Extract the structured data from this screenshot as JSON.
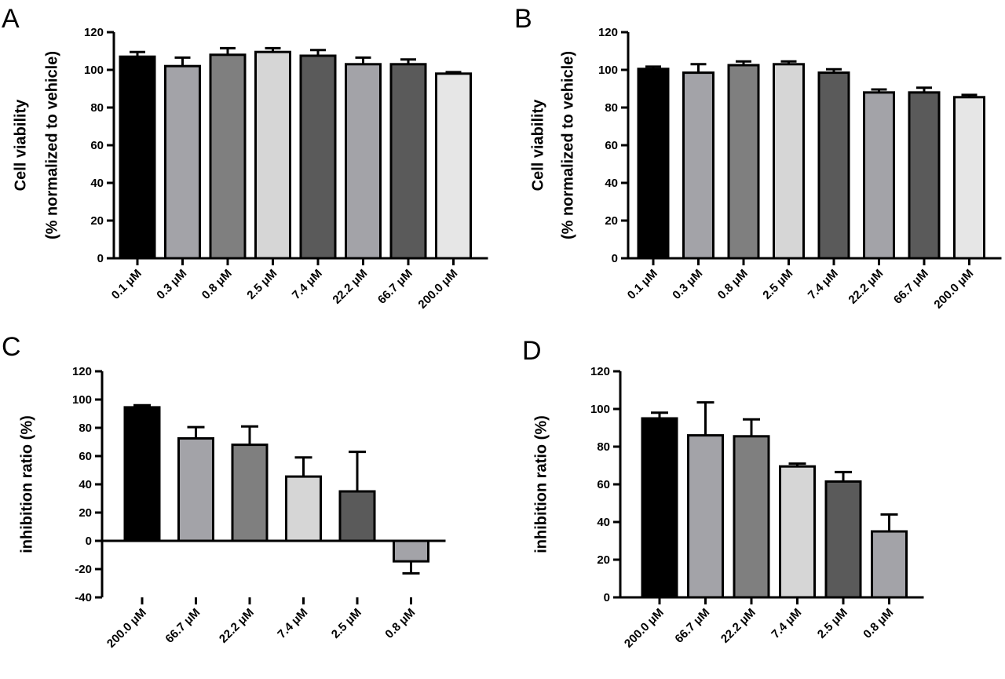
{
  "figure": {
    "panel_letters": [
      "A",
      "B",
      "C",
      "D"
    ]
  },
  "chart_data": [
    {
      "panel": "A",
      "type": "bar",
      "categories": [
        "0.1 μM",
        "0.3 μM",
        "0.8 μM",
        "2.5 μM",
        "7.4 μM",
        "22.2 μM",
        "66.7 μM",
        "200.0 μM"
      ],
      "values": [
        107,
        102,
        108,
        109.5,
        107.5,
        103,
        103,
        98
      ],
      "errors": [
        2.5,
        4.5,
        3.5,
        2,
        3,
        3.5,
        2.5,
        0.8
      ],
      "bar_colors": [
        "#000000",
        "#a3a3a8",
        "#7f7f7f",
        "#d6d6d6",
        "#5a5a5a",
        "#a3a3a8",
        "#5a5a5a",
        "#e6e6e6"
      ],
      "ylabel_lines": [
        "Cell viability",
        "(% normalized to vehicle)"
      ],
      "ylim": [
        0,
        120
      ],
      "yticks": [
        0,
        20,
        40,
        60,
        80,
        100,
        120
      ],
      "grid": false
    },
    {
      "panel": "B",
      "type": "bar",
      "categories": [
        "0.1 μM",
        "0.3 μM",
        "0.8 μM",
        "2.5 μM",
        "7.4 μM",
        "22.2 μM",
        "66.7 μM",
        "200.0 μM"
      ],
      "values": [
        100.5,
        98.5,
        102.5,
        103,
        98.5,
        88,
        88,
        85.5
      ],
      "errors": [
        1.2,
        4.5,
        2,
        1.5,
        1.8,
        1.6,
        2.5,
        1.2
      ],
      "bar_colors": [
        "#000000",
        "#a3a3a8",
        "#7f7f7f",
        "#d6d6d6",
        "#5a5a5a",
        "#a3a3a8",
        "#5a5a5a",
        "#e6e6e6"
      ],
      "ylabel_lines": [
        "Cell viability",
        "(% normalized to vehicle)"
      ],
      "ylim": [
        0,
        120
      ],
      "yticks": [
        0,
        20,
        40,
        60,
        80,
        100,
        120
      ],
      "grid": false
    },
    {
      "panel": "C",
      "type": "bar",
      "categories": [
        "200.0 μM",
        "66.7 μM",
        "22.2 μM",
        "7.4 μM",
        "2.5 μM",
        "0.8 μM"
      ],
      "values": [
        94.5,
        72.5,
        68,
        45.5,
        35,
        -14.5
      ],
      "errors": [
        1.5,
        8,
        13,
        13.5,
        28,
        8.5
      ],
      "bar_colors": [
        "#000000",
        "#a3a3a8",
        "#7f7f7f",
        "#d6d6d6",
        "#5a5a5a",
        "#a3a3a8"
      ],
      "ylabel_lines": [
        "inhibition ratio (%)"
      ],
      "ylim": [
        -40,
        120
      ],
      "yticks": [
        -40,
        -20,
        0,
        20,
        40,
        60,
        80,
        100,
        120
      ],
      "grid": false
    },
    {
      "panel": "D",
      "type": "bar",
      "categories": [
        "200.0 μM",
        "66.7 μM",
        "22.2 μM",
        "7.4 μM",
        "2.5 μM",
        "0.8 μM"
      ],
      "values": [
        95,
        86,
        85.5,
        69.5,
        61.5,
        35
      ],
      "errors": [
        3,
        17.5,
        9,
        1.5,
        5,
        9
      ],
      "bar_colors": [
        "#000000",
        "#a3a3a8",
        "#7f7f7f",
        "#d6d6d6",
        "#5a5a5a",
        "#a3a3a8"
      ],
      "ylabel_lines": [
        "inhibition ratio (%)"
      ],
      "ylim": [
        0,
        120
      ],
      "yticks": [
        0,
        20,
        40,
        60,
        80,
        100,
        120
      ],
      "grid": false
    }
  ]
}
